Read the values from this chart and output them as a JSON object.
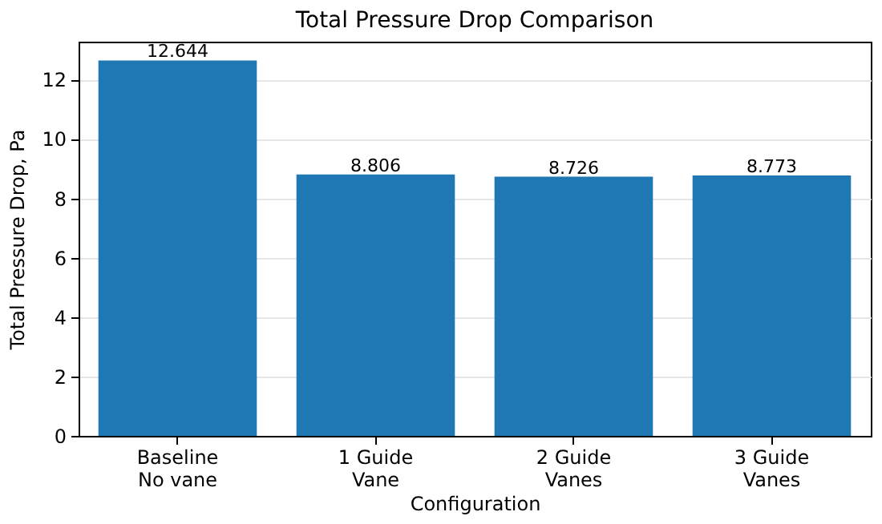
{
  "chart_data": {
    "type": "bar",
    "title": "Total Pressure Drop Comparison",
    "xlabel": "Configuration",
    "ylabel": "Total Pressure Drop, Pa",
    "categories": [
      "Baseline\nNo vane",
      "1 Guide\nVane",
      "2 Guide\nVanes",
      "3 Guide\nVanes"
    ],
    "values": [
      12.644,
      8.806,
      8.726,
      8.773
    ],
    "color": "#1f77b4",
    "ylim": [
      0,
      13.276
    ],
    "yticks": [
      0,
      2,
      4,
      6,
      8,
      10,
      12
    ],
    "grid": "y",
    "data_labels": true
  }
}
